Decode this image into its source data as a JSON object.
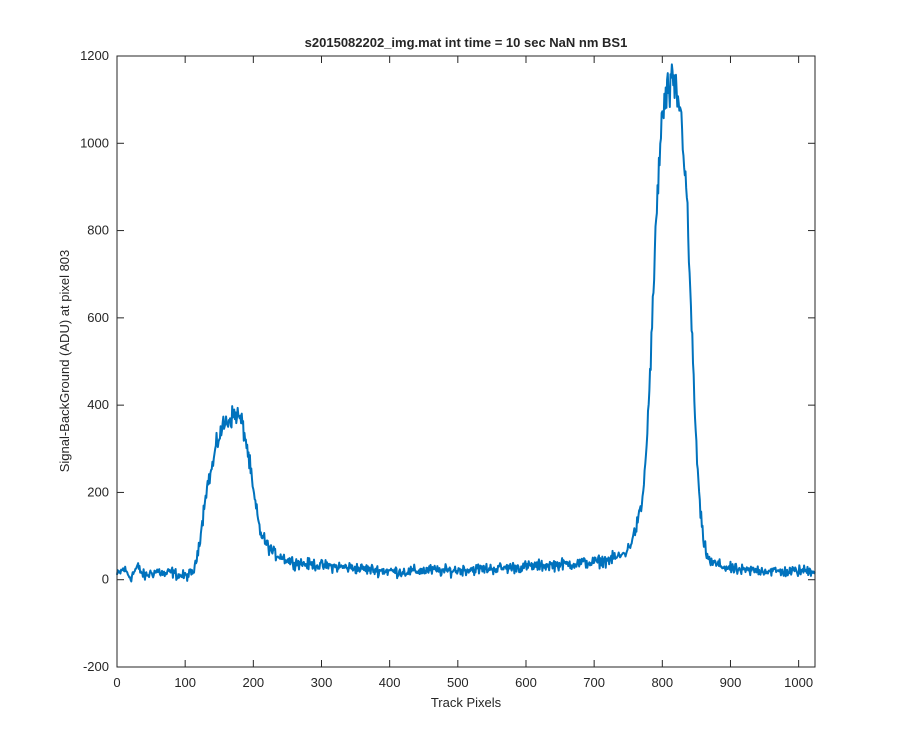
{
  "chart_data": {
    "type": "line",
    "title": "s2015082202_img.mat int time = 10 sec  NaN nm BS1",
    "xlabel": "Track Pixels",
    "ylabel": "Signal-BackGround (ADU) at pixel 803",
    "xlim": [
      0,
      1024
    ],
    "ylim": [
      -200,
      1200
    ],
    "xticks": [
      0,
      100,
      200,
      300,
      400,
      500,
      600,
      700,
      800,
      900,
      1000
    ],
    "yticks": [
      -200,
      0,
      200,
      400,
      600,
      800,
      1000,
      1200
    ],
    "grid": false,
    "series": [
      {
        "name": "signal",
        "color": "#0072BD",
        "x": [
          0,
          10,
          20,
          30,
          40,
          50,
          60,
          70,
          80,
          90,
          100,
          110,
          115,
          120,
          125,
          130,
          135,
          140,
          145,
          150,
          155,
          160,
          165,
          170,
          175,
          180,
          185,
          190,
          195,
          200,
          210,
          220,
          230,
          240,
          250,
          260,
          270,
          280,
          290,
          300,
          320,
          340,
          360,
          380,
          400,
          420,
          440,
          460,
          480,
          500,
          520,
          540,
          560,
          580,
          600,
          620,
          640,
          660,
          680,
          700,
          720,
          740,
          750,
          760,
          770,
          775,
          780,
          785,
          790,
          795,
          800,
          805,
          810,
          815,
          820,
          825,
          830,
          835,
          840,
          845,
          850,
          855,
          860,
          865,
          870,
          880,
          890,
          900,
          920,
          940,
          960,
          980,
          1000,
          1024
        ],
        "values": [
          10,
          25,
          5,
          30,
          8,
          15,
          20,
          12,
          18,
          10,
          8,
          15,
          30,
          80,
          130,
          200,
          230,
          260,
          300,
          330,
          350,
          360,
          370,
          375,
          380,
          370,
          350,
          310,
          260,
          200,
          110,
          80,
          60,
          55,
          45,
          40,
          38,
          35,
          35,
          32,
          30,
          28,
          25,
          22,
          20,
          18,
          20,
          22,
          20,
          22,
          24,
          25,
          26,
          28,
          30,
          32,
          34,
          36,
          38,
          40,
          45,
          55,
          70,
          110,
          170,
          260,
          400,
          580,
          780,
          950,
          1060,
          1100,
          1120,
          1130,
          1120,
          1090,
          1020,
          900,
          700,
          500,
          300,
          170,
          90,
          60,
          40,
          35,
          30,
          25,
          20,
          22,
          20,
          18,
          20,
          22
        ]
      }
    ]
  }
}
